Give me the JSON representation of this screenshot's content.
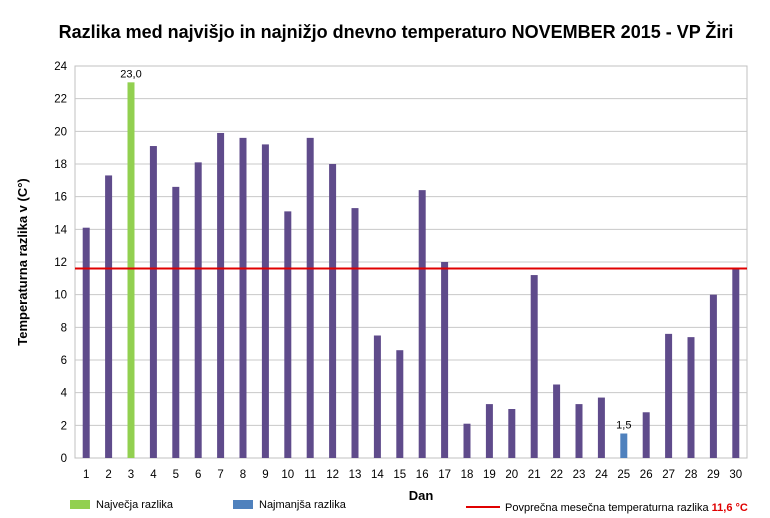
{
  "chart_data": {
    "type": "bar",
    "title": "Razlika med najvišjo in najnižjo dnevno temperaturo NOVEMBER 2015 - VP Žiri",
    "xlabel": "Dan",
    "ylabel": "Temperaturna razlika v (C°)",
    "ylim": [
      0,
      24
    ],
    "ytick_step": 2,
    "grid": true,
    "categories": [
      "1",
      "2",
      "3",
      "4",
      "5",
      "6",
      "7",
      "8",
      "9",
      "10",
      "11",
      "12",
      "13",
      "14",
      "15",
      "16",
      "17",
      "18",
      "19",
      "20",
      "21",
      "22",
      "23",
      "24",
      "25",
      "26",
      "27",
      "28",
      "29",
      "30"
    ],
    "values": [
      14.1,
      17.3,
      23.0,
      19.1,
      16.6,
      18.1,
      19.9,
      19.6,
      19.2,
      15.1,
      19.6,
      18.0,
      15.3,
      7.5,
      6.6,
      16.4,
      12.0,
      2.1,
      3.3,
      3.0,
      11.2,
      4.5,
      3.3,
      3.7,
      1.5,
      2.8,
      7.6,
      7.4,
      10.0,
      11.6
    ],
    "reference_line": {
      "value": 11.6,
      "label": "Povprečna mesečna temperaturna razlika",
      "value_label": "11,6 °C",
      "color": "#e00000"
    },
    "data_labels": [
      {
        "index": 2,
        "text": "23,0"
      },
      {
        "index": 24,
        "text": "1,5"
      }
    ],
    "colors": {
      "default": "#5f4b8b",
      "max": "#92d050",
      "min": "#4f81bd"
    },
    "legend": {
      "placement": "bottom",
      "max_label": "Največja razlika",
      "min_label": "Najmanjša razlika"
    }
  }
}
